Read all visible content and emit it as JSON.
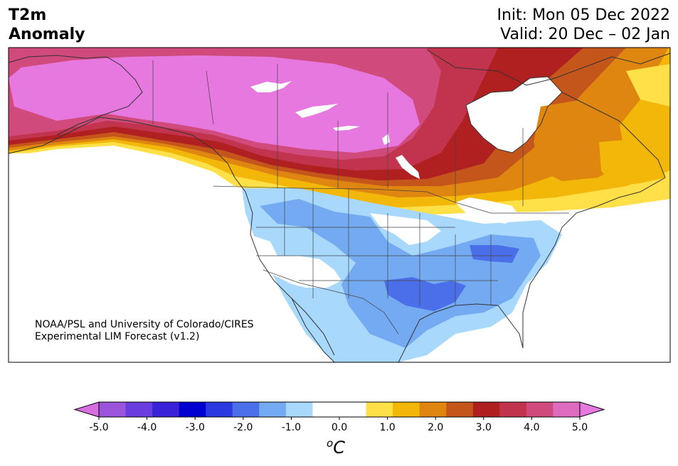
{
  "title_left": [
    "T2m",
    "Anomaly"
  ],
  "title_right": [
    "Init: Mon 05 Dec 2022",
    "Valid: 20 Dec – 02 Jan"
  ],
  "credit": [
    "NOAA/PSL and University of Colorado/CIRES",
    "Experimental LIM Forecast (v1.2)"
  ],
  "colorbar": {
    "unit_sup": "o",
    "unit": "C",
    "min": -5.0,
    "max": 5.0,
    "ticks": [
      "-5.0",
      "-4.0",
      "-3.0",
      "-2.0",
      "-1.0",
      "0.0",
      "1.0",
      "2.0",
      "3.0",
      "4.0",
      "5.0"
    ],
    "colors": [
      "#9a55dc",
      "#6a3ddf",
      "#3a22d8",
      "#0000d0",
      "#2a3ae0",
      "#4a6fe8",
      "#74aaf2",
      "#a8d8fc",
      "#ffffff",
      "#ffffff",
      "#ffe048",
      "#f2b708",
      "#de8610",
      "#c4561c",
      "#b02020",
      "#c2344e",
      "#d04a7c",
      "#de6cbe"
    ],
    "under_color": "#d66ee0",
    "over_color": "#e678e0"
  },
  "colors": {
    "strong_warm": "#e678e0",
    "warm_4": "#c2344e",
    "warm_3": "#b02020",
    "warm_2": "#de8610",
    "warm_1": "#f2b708",
    "warm_05": "#ffe048",
    "cool_05": "#a8d8fc",
    "cool_1": "#74aaf2",
    "cool_15": "#4a6fe8"
  }
}
